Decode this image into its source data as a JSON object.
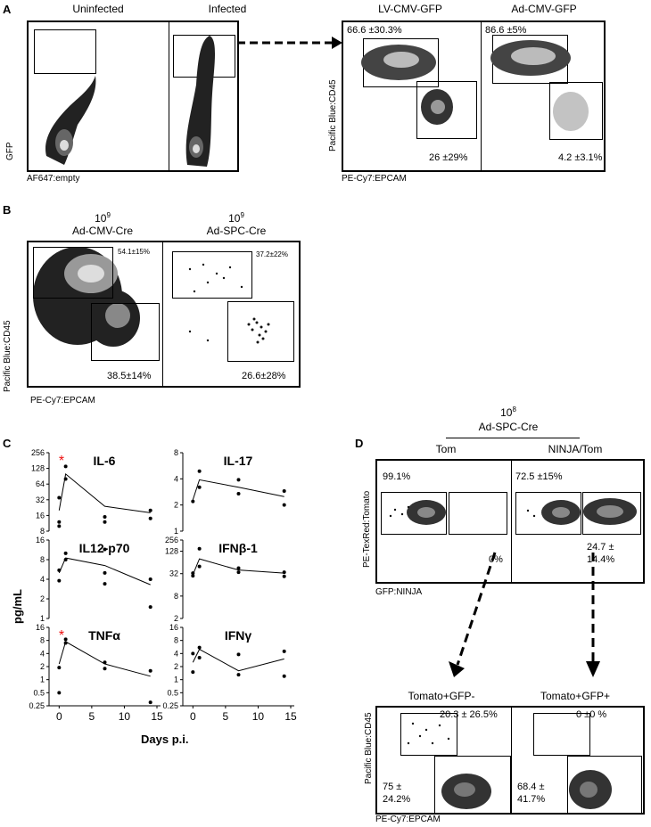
{
  "panelA": {
    "letter": "A",
    "col1": "Uninfected",
    "col2": "Infected",
    "col3": "LV-CMV-GFP",
    "col4": "Ad-CMV-GFP",
    "ylab_left": "GFP",
    "xlab_left": "AF647:empty",
    "ylab_right": "Pacific Blue:CD45",
    "xlab_right": "PE-Cy7:EPCAM",
    "lv_top": "66.6 ±30.3%",
    "lv_bottom": "26 ±29%",
    "ad_top": "86.6 ±5%",
    "ad_bottom": "4.2 ±3.1%"
  },
  "panelB": {
    "letter": "B",
    "dose": "10",
    "dose_exp": "9",
    "col1": "Ad-CMV-Cre",
    "col2": "Ad-SPC-Cre",
    "ylab": "Pacific Blue:CD45",
    "xlab": "PE-Cy7:EPCAM",
    "cmv_top": "54.1±15%",
    "cmv_bottom": "38.5±14%",
    "spc_top": "37.2±22%",
    "spc_bottom": "26.6±28%"
  },
  "panelC": {
    "letter": "C",
    "ylab": "pg/mL",
    "xlab": "Days p.i.",
    "star": "*"
  },
  "panelD": {
    "letter": "D",
    "dose": "10",
    "dose_exp": "8",
    "vector": "Ad-SPC-Cre",
    "col1": "Tom",
    "col2": "NINJA/Tom",
    "ylab_top": "PE-TexRed:Tomato",
    "xlab_top": "GFP:NINJA",
    "tom_left": "99.1%",
    "tom_right": "0%",
    "ninja_left": "72.5 ±15%",
    "ninja_right_1": "24.7 ±",
    "ninja_right_2": "14.4%",
    "sub1": "Tomato+GFP-",
    "sub2": "Tomato+GFP+",
    "ylab_bottom": "Pacific Blue:CD45",
    "xlab_bottom": "PE-Cy7:EPCAM",
    "s1_top": "20.3 ± 26.5%",
    "s1_bottom_1": "75 ±",
    "s1_bottom_2": "24.2%",
    "s2_top": "0 ±0 %",
    "s2_bottom_1": "68.4 ±",
    "s2_bottom_2": "41.7%"
  },
  "chart_data": [
    {
      "type": "line",
      "title": "IL-6",
      "yscale": "log2",
      "ylim": [
        8,
        256
      ],
      "yticks": [
        "8",
        "16",
        "32",
        "64",
        "128",
        "256"
      ],
      "x": [
        0,
        1,
        7,
        14
      ],
      "line": [
        20,
        100,
        24,
        18
      ],
      "points_x": [
        0,
        0,
        0,
        1,
        1,
        7,
        7,
        14,
        14
      ],
      "points_y": [
        10,
        12,
        35,
        80,
        140,
        15,
        12,
        20,
        14
      ],
      "significant": true
    },
    {
      "type": "line",
      "title": "IL-17",
      "yscale": "log2",
      "ylim": [
        1,
        8
      ],
      "yticks": [
        "1",
        "2",
        "4",
        "8"
      ],
      "x": [
        0,
        1,
        7,
        14
      ],
      "line": [
        2.3,
        3.9,
        3.2,
        2.5
      ],
      "points_x": [
        0,
        1,
        1,
        7,
        7,
        14,
        14
      ],
      "points_y": [
        2.2,
        3.2,
        4.9,
        3.9,
        2.7,
        2.9,
        2.0
      ],
      "significant": false
    },
    {
      "type": "line",
      "title": "IL12-p70",
      "yscale": "log2",
      "ylim": [
        1,
        16
      ],
      "yticks": [
        "1",
        "2",
        "4",
        "8",
        "16"
      ],
      "x": [
        0,
        1,
        7,
        14
      ],
      "line": [
        5,
        8.5,
        6.5,
        3.3
      ],
      "points_x": [
        0,
        0,
        1,
        1,
        7,
        7,
        7,
        14,
        14
      ],
      "points_y": [
        3.8,
        5.5,
        8,
        10,
        11.5,
        5,
        3.4,
        4,
        1.5
      ],
      "significant": false
    },
    {
      "type": "line",
      "title": "IFNβ-1",
      "yscale": "log2",
      "ylim": [
        2,
        256
      ],
      "yticks": [
        "2",
        "8",
        "32",
        "128",
        "256"
      ],
      "x": [
        0,
        1,
        7,
        14
      ],
      "line": [
        30,
        80,
        40,
        33
      ],
      "points_x": [
        0,
        0,
        1,
        1,
        7,
        7,
        14,
        14
      ],
      "points_y": [
        28,
        33,
        50,
        150,
        45,
        35,
        35,
        27
      ],
      "significant": false
    },
    {
      "type": "line",
      "title": "TNFα",
      "yscale": "log2",
      "ylim": [
        0.25,
        16
      ],
      "yticks": [
        "0.25",
        "0.5",
        "1",
        "2",
        "4",
        "8",
        "16"
      ],
      "x": [
        0,
        1,
        7,
        14
      ],
      "line": [
        2.3,
        7.5,
        2.3,
        1.2
      ],
      "points_x": [
        0,
        0,
        1,
        1,
        7,
        7,
        14,
        14
      ],
      "points_y": [
        0.5,
        1.9,
        7,
        8.5,
        2.5,
        1.8,
        0.3,
        1.6
      ],
      "significant": true
    },
    {
      "type": "line",
      "title": "IFNγ",
      "yscale": "log2",
      "ylim": [
        0.25,
        16
      ],
      "yticks": [
        "0.25",
        "0.5",
        "1",
        "2",
        "4",
        "8",
        "16"
      ],
      "x": [
        0,
        1,
        7,
        14
      ],
      "line": [
        2.5,
        5,
        1.6,
        3
      ],
      "points_x": [
        0,
        0,
        1,
        1,
        7,
        7,
        14,
        14
      ],
      "points_y": [
        1.5,
        4,
        5.5,
        3.2,
        3.8,
        1.3,
        1.2,
        4.5
      ],
      "significant": false
    }
  ],
  "xticks": [
    "0",
    "5",
    "10",
    "15"
  ]
}
